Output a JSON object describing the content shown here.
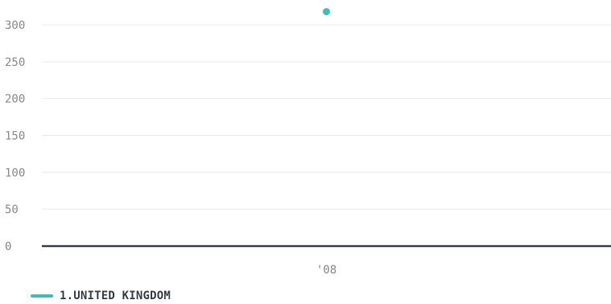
{
  "chart_data": {
    "type": "scatter",
    "title": "",
    "xlabel": "",
    "ylabel": "",
    "categories": [
      "'08"
    ],
    "ylim": [
      0,
      300
    ],
    "yticks": [
      0,
      50,
      100,
      150,
      200,
      250,
      300
    ],
    "grid": true,
    "legend_position": "bottom-left",
    "series": [
      {
        "name": "1.UNITED KINGDOM",
        "color": "#3dbdbd",
        "values": [
          318
        ]
      }
    ]
  }
}
